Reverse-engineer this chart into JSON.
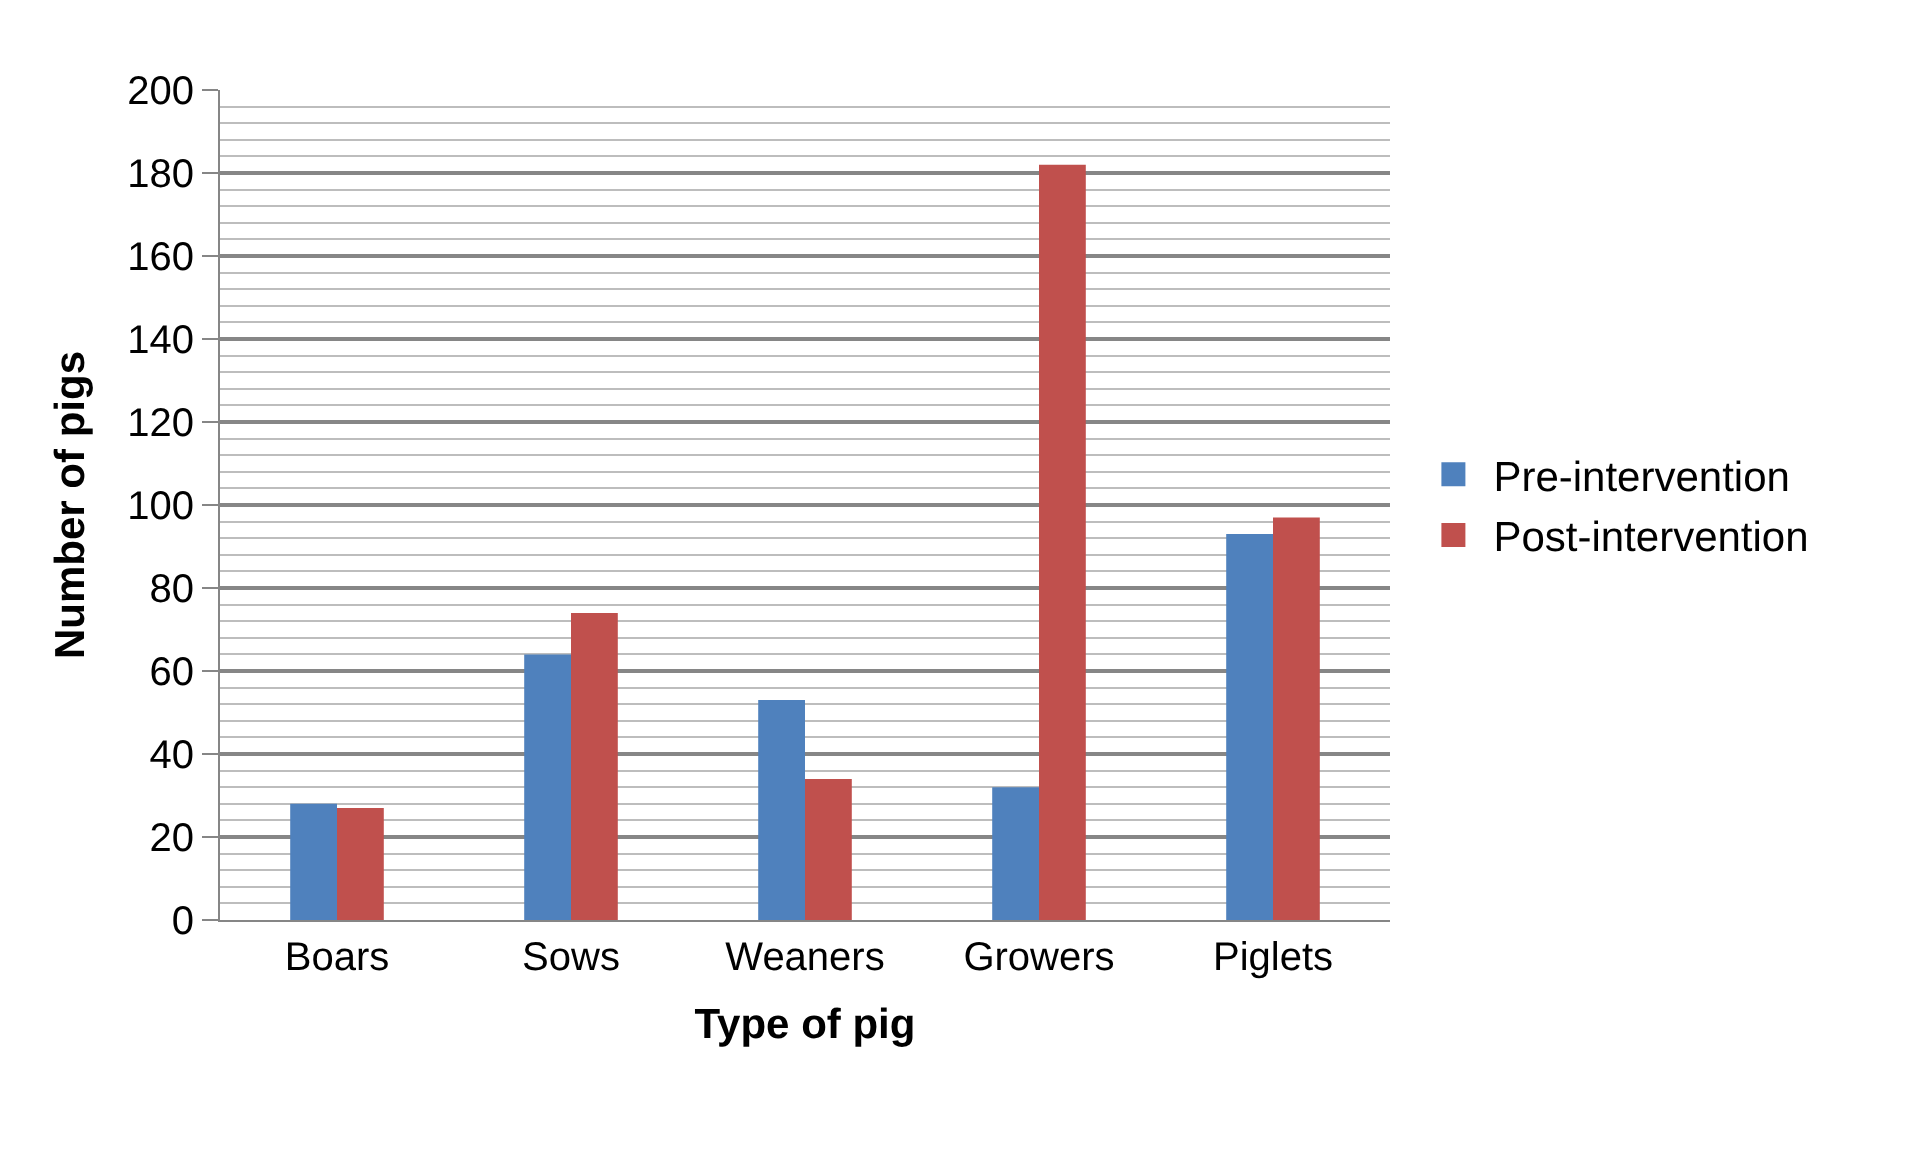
{
  "chart_data": {
    "type": "bar",
    "xlabel": "Type of pig",
    "ylabel": "Number of pigs",
    "categories": [
      "Boars",
      "Sows",
      "Weaners",
      "Growers",
      "Piglets"
    ],
    "series": [
      {
        "name": "Pre-intervention",
        "color": "#4f81bd",
        "values": [
          28,
          64,
          53,
          32,
          93
        ]
      },
      {
        "name": "Post-intervention",
        "color": "#c0504d",
        "values": [
          27,
          74,
          34,
          182,
          97
        ]
      }
    ],
    "ylim": [
      0,
      200
    ],
    "yticks": [
      0,
      20,
      40,
      60,
      80,
      100,
      120,
      140,
      160,
      180,
      200
    ],
    "grid": "y",
    "legend": "right"
  }
}
